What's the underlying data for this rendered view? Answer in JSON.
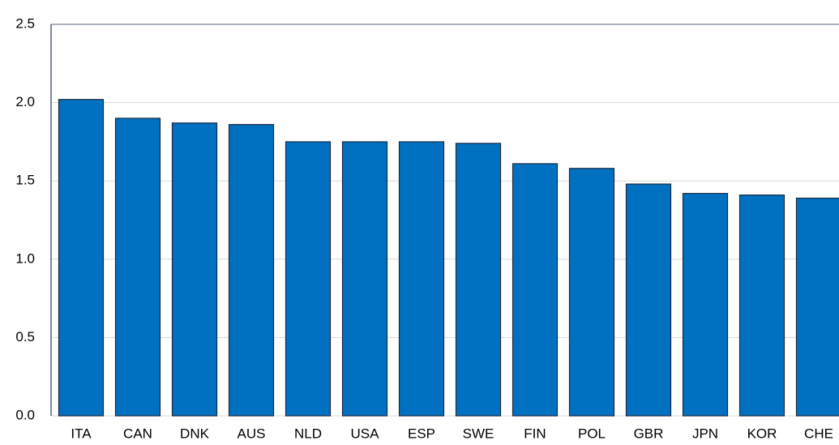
{
  "chart_data": {
    "type": "bar",
    "categories": [
      "ITA",
      "CAN",
      "DNK",
      "AUS",
      "NLD",
      "USA",
      "ESP",
      "SWE",
      "FIN",
      "POL",
      "GBR",
      "JPN",
      "KOR",
      "CHE"
    ],
    "values": [
      2.02,
      1.9,
      1.87,
      1.86,
      1.75,
      1.75,
      1.75,
      1.74,
      1.61,
      1.58,
      1.48,
      1.42,
      1.41,
      1.39
    ],
    "color": "#0070c0",
    "ylim": [
      0,
      2.5
    ],
    "yticks": [
      {
        "value": 0,
        "label": "0.0"
      },
      0.5,
      {
        "value": 1,
        "label": "1.0"
      },
      1.5,
      {
        "value": 2,
        "label": "2.0"
      },
      2.5
    ],
    "grid": true
  }
}
